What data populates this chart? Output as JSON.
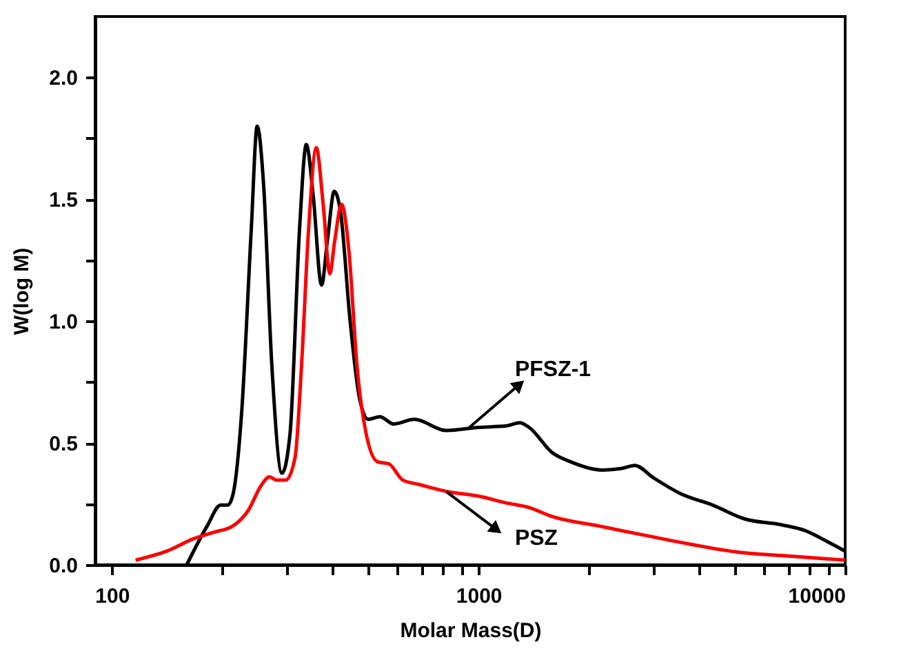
{
  "chart_data": {
    "type": "line",
    "xlabel": "Molar Mass(D)",
    "ylabel": "W(log M)",
    "log": "x",
    "xlim": [
      90,
      10000
    ],
    "ylim": [
      0,
      2.25
    ],
    "xticks": [
      100,
      {
        "value": 200,
        "label": null
      },
      {
        "value": 300,
        "label": null
      },
      {
        "value": 400,
        "label": null
      },
      {
        "value": 500,
        "label": null
      },
      {
        "value": 600,
        "label": null
      },
      {
        "value": 700,
        "label": null
      },
      {
        "value": 800,
        "label": null
      },
      {
        "value": 900,
        "label": null
      },
      1000,
      {
        "value": 2000,
        "label": null
      },
      {
        "value": 3000,
        "label": null
      },
      {
        "value": 4000,
        "label": null
      },
      {
        "value": 5000,
        "label": null
      },
      {
        "value": 6000,
        "label": null
      },
      {
        "value": 7000,
        "label": null
      },
      {
        "value": 8000,
        "label": null
      },
      {
        "value": 9000,
        "label": null
      },
      10000
    ],
    "yticks": [
      {
        "value": 0,
        "label": "0.0"
      },
      {
        "value": 0.25,
        "label": null
      },
      0.5,
      {
        "value": 0.75,
        "label": null
      },
      {
        "value": 1,
        "label": "1.0"
      },
      {
        "value": 1.25,
        "label": null
      },
      1.5,
      {
        "value": 1.75,
        "label": null
      },
      {
        "value": 2,
        "label": "2.0"
      }
    ],
    "grid": false,
    "marker": "none",
    "line_style": "solid",
    "series": [
      {
        "color": "#000000",
        "x": [
          160,
          182,
          198,
          207,
          214,
          226,
          240,
          249,
          259,
          273,
          291,
          306,
          325,
          339,
          354,
          373,
          388,
          404,
          421,
          446,
          473,
          500,
          538,
          587,
          668,
          817,
          1000,
          1189,
          1296,
          1374,
          1587,
          1782,
          2179,
          2447,
          2669,
          2993,
          3558,
          4353,
          5330,
          6714,
          7762,
          8973,
          10000
        ],
        "values": [
          0,
          0.16,
          0.245,
          0.245,
          0.29,
          0.63,
          1.38,
          1.8,
          1.57,
          0.82,
          0.376,
          0.536,
          1.38,
          1.725,
          1.515,
          1.148,
          1.345,
          1.533,
          1.44,
          1.007,
          0.687,
          0.597,
          0.608,
          0.578,
          0.597,
          0.551,
          0.564,
          0.57,
          0.583,
          0.564,
          0.461,
          0.423,
          0.389,
          0.395,
          0.408,
          0.358,
          0.292,
          0.245,
          0.188,
          0.164,
          0.141,
          0.094,
          0.056
        ]
      },
      {
        "color": "#ff0000",
        "x": [
          116,
          141,
          167,
          188,
          214,
          236,
          254,
          269,
          281,
          298,
          316,
          329,
          344,
          361,
          377,
          393,
          405,
          423,
          443,
          466,
          494,
          530,
          570,
          621,
          687,
          817,
          1000,
          1189,
          1374,
          1587,
          2118,
          2825,
          3773,
          5035,
          6714,
          10000
        ],
        "values": [
          0.019,
          0.056,
          0.107,
          0.132,
          0.16,
          0.226,
          0.32,
          0.361,
          0.348,
          0.348,
          0.442,
          0.818,
          1.38,
          1.712,
          1.477,
          1.195,
          1.326,
          1.48,
          1.289,
          0.818,
          0.536,
          0.423,
          0.414,
          0.348,
          0.33,
          0.301,
          0.282,
          0.254,
          0.235,
          0.198,
          0.16,
          0.122,
          0.085,
          0.053,
          0.038,
          0.019
        ]
      }
    ],
    "annotations": [
      {
        "text": "PFSZ-1",
        "x": 944,
        "y": 0.564
      },
      {
        "text": "PSZ",
        "x": 817,
        "y": 0.3
      }
    ]
  }
}
